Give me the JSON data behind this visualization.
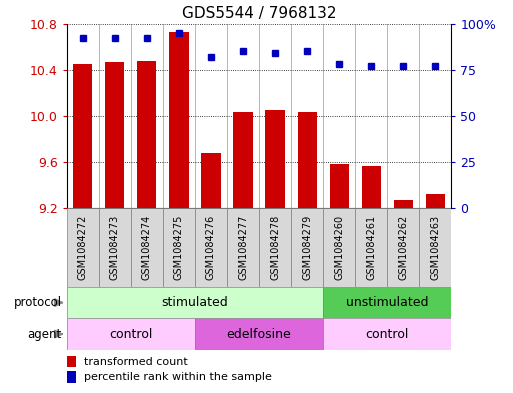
{
  "title": "GDS5544 / 7968132",
  "samples": [
    "GSM1084272",
    "GSM1084273",
    "GSM1084274",
    "GSM1084275",
    "GSM1084276",
    "GSM1084277",
    "GSM1084278",
    "GSM1084279",
    "GSM1084260",
    "GSM1084261",
    "GSM1084262",
    "GSM1084263"
  ],
  "bar_values": [
    10.45,
    10.47,
    10.48,
    10.73,
    9.68,
    10.03,
    10.05,
    10.03,
    9.58,
    9.57,
    9.27,
    9.32
  ],
  "dot_values": [
    92,
    92,
    92,
    95,
    82,
    85,
    84,
    85,
    78,
    77,
    77,
    77
  ],
  "ylim_left": [
    9.2,
    10.8
  ],
  "ylim_right": [
    0,
    100
  ],
  "yticks_left": [
    9.2,
    9.6,
    10.0,
    10.4,
    10.8
  ],
  "yticks_right": [
    0,
    25,
    50,
    75,
    100
  ],
  "bar_color": "#cc0000",
  "dot_color": "#0000bb",
  "bar_width": 0.6,
  "protocol_labels": [
    {
      "text": "stimulated",
      "start": 0,
      "end": 7,
      "color": "#ccffcc"
    },
    {
      "text": "unstimulated",
      "start": 8,
      "end": 11,
      "color": "#55cc55"
    }
  ],
  "agent_labels": [
    {
      "text": "control",
      "start": 0,
      "end": 3,
      "color": "#ffccff"
    },
    {
      "text": "edelfosine",
      "start": 4,
      "end": 7,
      "color": "#dd66dd"
    },
    {
      "text": "control",
      "start": 8,
      "end": 11,
      "color": "#ffccff"
    }
  ],
  "protocol_row_label": "protocol",
  "agent_row_label": "agent",
  "legend_bar_label": "transformed count",
  "legend_dot_label": "percentile rank within the sample",
  "tick_label_color_left": "#cc0000",
  "tick_label_color_right": "#0000bb",
  "title_fontsize": 11,
  "sample_fontsize": 7,
  "tick_fontsize": 9
}
